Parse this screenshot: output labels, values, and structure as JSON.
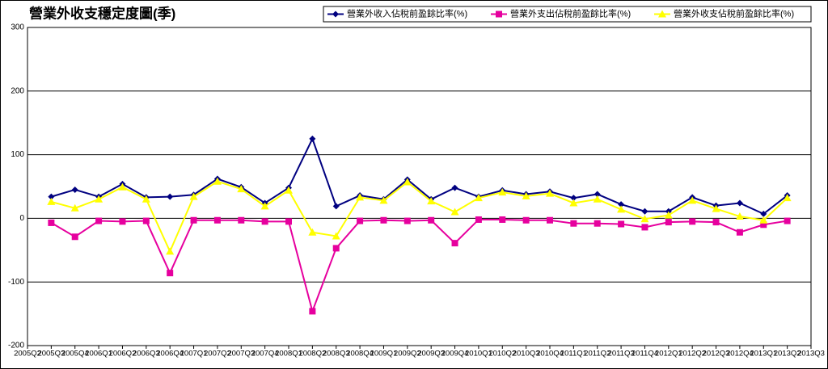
{
  "chart_data": {
    "type": "line",
    "title": "營業外收支穩定度圖(季)",
    "categories": [
      "2005Q2",
      "2005Q3",
      "2005Q4",
      "2006Q1",
      "2006Q2",
      "2006Q3",
      "2006Q4",
      "2007Q1",
      "2007Q2",
      "2007Q3",
      "2007Q4",
      "2008Q1",
      "2008Q2",
      "2008Q3",
      "2008Q4",
      "2009Q1",
      "2009Q2",
      "2009Q3",
      "2009Q4",
      "2010Q1",
      "2010Q2",
      "2010Q3",
      "2010Q4",
      "2011Q1",
      "2011Q2",
      "2011Q3",
      "2011Q4",
      "2012Q1",
      "2012Q2",
      "2012Q3",
      "2012Q4",
      "2013Q1",
      "2013Q2",
      "2013Q3"
    ],
    "series": [
      {
        "name": "營業外收入佔稅前盈餘比率(%)",
        "color": "#000080",
        "marker": "diamond",
        "values": [
          null,
          34,
          45,
          34,
          54,
          33,
          34,
          37,
          62,
          49,
          24,
          48,
          125,
          19,
          36,
          30,
          61,
          30,
          48,
          34,
          44,
          38,
          42,
          32,
          38,
          22,
          11,
          11,
          33,
          20,
          24,
          7,
          36,
          null
        ]
      },
      {
        "name": "營業外支出佔稅前盈餘比率(%)",
        "color": "#e6009e",
        "marker": "square",
        "values": [
          null,
          -7,
          -29,
          -4,
          -5,
          -4,
          -86,
          -3,
          -3,
          -3,
          -5,
          -5,
          -146,
          -47,
          -4,
          -3,
          -4,
          -3,
          -39,
          -2,
          -2,
          -3,
          -3,
          -8,
          -8,
          -9,
          -14,
          -6,
          -5,
          -6,
          -22,
          -10,
          -4,
          null
        ]
      },
      {
        "name": "營業外收支佔稅前盈餘比率(%)",
        "color": "#ffff00",
        "marker": "triangle",
        "values": [
          null,
          26,
          16,
          30,
          49,
          30,
          -52,
          34,
          58,
          46,
          19,
          44,
          -22,
          -28,
          33,
          28,
          57,
          27,
          10,
          32,
          41,
          35,
          39,
          24,
          30,
          14,
          -1,
          5,
          28,
          15,
          3,
          -3,
          32,
          null
        ]
      }
    ],
    "ylim": [
      -200,
      300
    ],
    "yticks": [
      -200,
      -100,
      0,
      100,
      200,
      300
    ],
    "grid": true,
    "legend": "top-right"
  }
}
